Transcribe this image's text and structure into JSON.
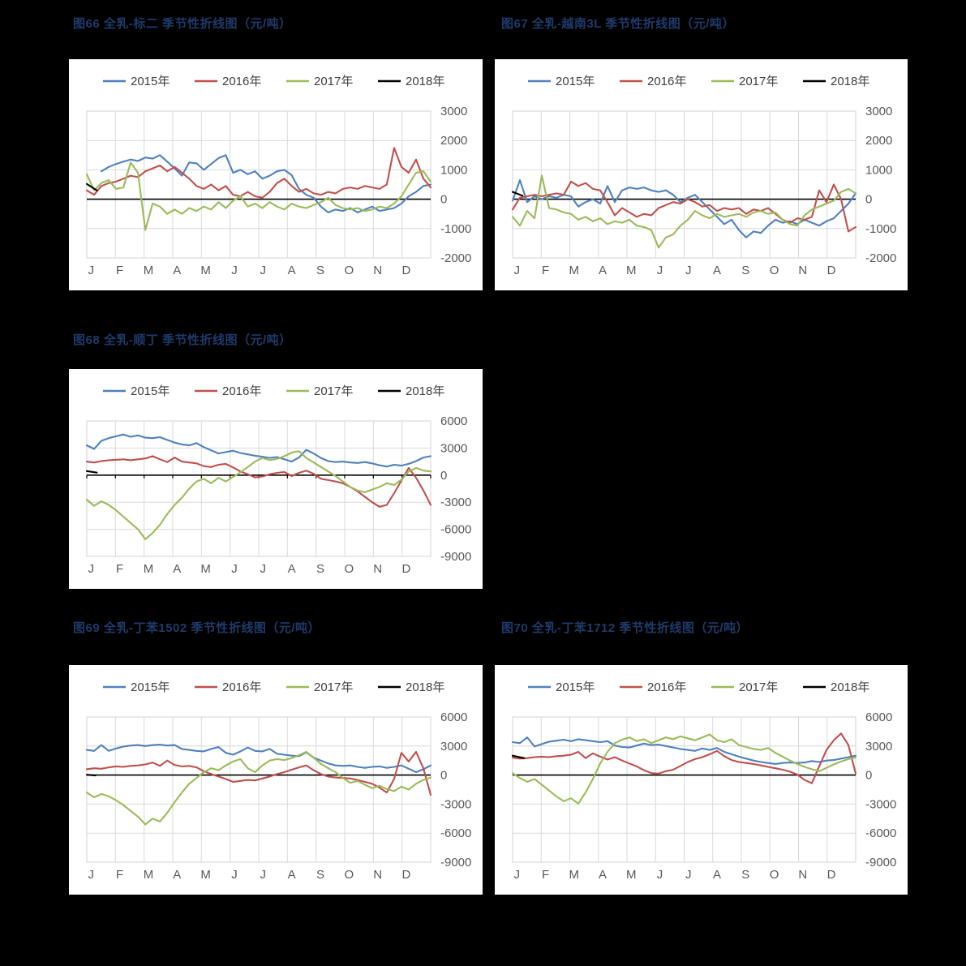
{
  "page": {
    "background": "#000000"
  },
  "palette": {
    "blue": "#4F81BD",
    "red": "#C0504D",
    "green": "#9BBB59",
    "black": "#000000",
    "title_text": "#1F3A6B",
    "axis_text": "#595959",
    "legend_text": "#404040",
    "grid": "#D9D9D9",
    "panel_bg": "#FFFFFF"
  },
  "chart_data": [
    {
      "id": "fig66",
      "type": "line",
      "title": "图66 全乳-标二 季节性折线图（元/吨）",
      "x_labels": [
        "J",
        "F",
        "M",
        "A",
        "M",
        "J",
        "J",
        "A",
        "S",
        "O",
        "N",
        "D"
      ],
      "ylim": [
        -2000,
        3000
      ],
      "yticks": [
        3000,
        2000,
        1000,
        0,
        -1000,
        -2000
      ],
      "zero_axis": true,
      "zero_axis_ticks": false,
      "grid": true,
      "legend_position": "top",
      "series": [
        {
          "name": "2015年",
          "color_key": "blue",
          "span": [
            0,
            12
          ],
          "values": [
            null,
            null,
            950,
            1100,
            1200,
            1280,
            1350,
            1300,
            1420,
            1380,
            1500,
            1280,
            1050,
            800,
            1250,
            1220,
            1000,
            1200,
            1400,
            1500,
            900,
            1000,
            850,
            950,
            700,
            800,
            950,
            1000,
            820,
            350,
            150,
            50,
            -250,
            -450,
            -350,
            -400,
            -300,
            -450,
            -350,
            -250,
            -400,
            -350,
            -300,
            -150,
            100,
            250,
            450,
            500
          ]
        },
        {
          "name": "2016年",
          "color_key": "red",
          "span": [
            0,
            12
          ],
          "values": [
            300,
            150,
            450,
            550,
            600,
            700,
            800,
            750,
            950,
            1050,
            1150,
            950,
            1100,
            900,
            700,
            450,
            350,
            500,
            300,
            450,
            150,
            100,
            250,
            100,
            50,
            250,
            550,
            700,
            450,
            250,
            350,
            200,
            150,
            250,
            200,
            350,
            400,
            350,
            450,
            400,
            350,
            500,
            1750,
            1100,
            900,
            1350,
            700,
            400
          ]
        },
        {
          "name": "2017年",
          "color_key": "green",
          "span": [
            0,
            12
          ],
          "values": [
            850,
            300,
            550,
            650,
            350,
            400,
            1250,
            900,
            -1050,
            -150,
            -250,
            -500,
            -350,
            -500,
            -300,
            -400,
            -250,
            -350,
            -100,
            -300,
            -50,
            100,
            -250,
            -150,
            -300,
            -100,
            -250,
            -350,
            -150,
            -250,
            -300,
            -200,
            -100,
            50,
            -200,
            -300,
            -350,
            -300,
            -400,
            -350,
            -250,
            -300,
            -150,
            100,
            500,
            900,
            950,
            600
          ]
        },
        {
          "name": "2018年",
          "color_key": "black",
          "span": [
            0,
            0.35
          ],
          "values": [
            520,
            300
          ]
        }
      ]
    },
    {
      "id": "fig67",
      "type": "line",
      "title": "图67 全乳-越南3L 季节性折线图（元/吨）",
      "x_labels": [
        "J",
        "F",
        "M",
        "A",
        "M",
        "J",
        "J",
        "A",
        "S",
        "O",
        "N",
        "D"
      ],
      "ylim": [
        -2000,
        3000
      ],
      "yticks": [
        3000,
        2000,
        1000,
        0,
        -1000,
        -2000
      ],
      "zero_axis": true,
      "zero_axis_ticks": false,
      "grid": true,
      "legend_position": "top",
      "series": [
        {
          "name": "2015年",
          "color_key": "blue",
          "span": [
            0,
            12
          ],
          "values": [
            -50,
            650,
            -100,
            100,
            0,
            100,
            50,
            150,
            100,
            -250,
            -100,
            0,
            -150,
            450,
            -100,
            300,
            400,
            350,
            400,
            300,
            250,
            300,
            150,
            -100,
            50,
            150,
            -100,
            -350,
            -600,
            -850,
            -700,
            -1050,
            -1300,
            -1100,
            -1150,
            -900,
            -700,
            -800,
            -750,
            -850,
            -700,
            -800,
            -900,
            -750,
            -650,
            -400,
            -150,
            200
          ]
        },
        {
          "name": "2016年",
          "color_key": "red",
          "span": [
            0,
            12
          ],
          "values": [
            -350,
            50,
            100,
            150,
            100,
            150,
            200,
            150,
            600,
            450,
            550,
            350,
            300,
            -100,
            -550,
            -300,
            -450,
            -600,
            -500,
            -550,
            -300,
            -200,
            -100,
            -150,
            0,
            -100,
            -250,
            -200,
            -400,
            -300,
            -350,
            -300,
            -500,
            -350,
            -400,
            -300,
            -500,
            -700,
            -800,
            -650,
            -700,
            -600,
            300,
            -100,
            500,
            0,
            -1100,
            -950
          ]
        },
        {
          "name": "2017年",
          "color_key": "green",
          "span": [
            0,
            12
          ],
          "values": [
            -600,
            -900,
            -400,
            -650,
            800,
            -300,
            -350,
            -450,
            -500,
            -700,
            -600,
            -750,
            -650,
            -850,
            -750,
            -800,
            -700,
            -900,
            -950,
            -1050,
            -1650,
            -1300,
            -1200,
            -900,
            -700,
            -400,
            -550,
            -650,
            -500,
            -600,
            -550,
            -500,
            -600,
            -450,
            -400,
            -500,
            -450,
            -700,
            -850,
            -900,
            -550,
            -350,
            -250,
            -150,
            -50,
            250,
            350,
            200
          ]
        },
        {
          "name": "2018年",
          "color_key": "black",
          "span": [
            0,
            0.35
          ],
          "values": [
            250,
            120
          ]
        }
      ]
    },
    {
      "id": "fig68",
      "type": "line",
      "title": "图68 全乳-顺丁 季节性折线图（元/吨）",
      "x_labels": [
        "J",
        "F",
        "M",
        "A",
        "M",
        "J",
        "J",
        "A",
        "S",
        "O",
        "N",
        "D"
      ],
      "ylim": [
        -9000,
        6000
      ],
      "yticks": [
        6000,
        3000,
        0,
        -3000,
        -6000,
        -9000
      ],
      "zero_axis": true,
      "zero_axis_ticks": true,
      "grid": true,
      "legend_position": "top",
      "series": [
        {
          "name": "2015年",
          "color_key": "blue",
          "span": [
            0,
            12
          ],
          "values": [
            3300,
            2900,
            3800,
            4100,
            4300,
            4500,
            4250,
            4400,
            4150,
            4100,
            4200,
            3900,
            3600,
            3400,
            3300,
            3550,
            3100,
            2750,
            2400,
            2550,
            2700,
            2450,
            2300,
            2150,
            2050,
            1900,
            2000,
            1750,
            1500,
            1950,
            2800,
            2400,
            1900,
            1550,
            1450,
            1500,
            1400,
            1350,
            1450,
            1300,
            1100,
            950,
            1150,
            1050,
            1250,
            1550,
            1950,
            2100
          ]
        },
        {
          "name": "2016年",
          "color_key": "red",
          "span": [
            0,
            12
          ],
          "values": [
            1500,
            1400,
            1550,
            1650,
            1700,
            1750,
            1650,
            1750,
            1850,
            2100,
            1750,
            1450,
            1950,
            1500,
            1400,
            1300,
            1000,
            900,
            1150,
            1250,
            850,
            400,
            100,
            -250,
            -150,
            100,
            250,
            350,
            -100,
            250,
            500,
            150,
            -400,
            -550,
            -700,
            -900,
            -1300,
            -1800,
            -2400,
            -3000,
            -3500,
            -3300,
            -2000,
            -600,
            800,
            -300,
            -1700,
            -3300
          ]
        },
        {
          "name": "2017年",
          "color_key": "green",
          "span": [
            0,
            12
          ],
          "values": [
            -2700,
            -3400,
            -2900,
            -3300,
            -3900,
            -4600,
            -5300,
            -6000,
            -7100,
            -6400,
            -5500,
            -4300,
            -3300,
            -2500,
            -1500,
            -700,
            -400,
            -900,
            -300,
            -700,
            -200,
            300,
            900,
            1500,
            1900,
            1650,
            1800,
            2100,
            2500,
            2650,
            1900,
            1400,
            900,
            400,
            -100,
            -700,
            -1300,
            -1700,
            -1900,
            -1600,
            -1300,
            -900,
            -1100,
            -500,
            400,
            800,
            500,
            400
          ]
        },
        {
          "name": "2018年",
          "color_key": "black",
          "span": [
            0,
            0.35
          ],
          "values": [
            450,
            280
          ]
        }
      ]
    },
    {
      "id": "fig69",
      "type": "line",
      "title": "图69 全乳-丁苯1502 季节性折线图（元/吨）",
      "x_labels": [
        "J",
        "F",
        "M",
        "A",
        "M",
        "J",
        "J",
        "A",
        "S",
        "O",
        "N",
        "D"
      ],
      "ylim": [
        -9000,
        6000
      ],
      "yticks": [
        6000,
        3000,
        0,
        -3000,
        -6000,
        -9000
      ],
      "zero_axis": true,
      "zero_axis_ticks": false,
      "grid": true,
      "legend_position": "top",
      "series": [
        {
          "name": "2015年",
          "color_key": "blue",
          "span": [
            0,
            12
          ],
          "values": [
            2600,
            2500,
            3100,
            2500,
            2750,
            2950,
            3050,
            3100,
            3000,
            3100,
            3150,
            3050,
            3100,
            2700,
            2600,
            2500,
            2450,
            2700,
            2900,
            2300,
            2100,
            2450,
            2850,
            2500,
            2450,
            2700,
            2200,
            2100,
            2000,
            1950,
            2350,
            1800,
            1500,
            1200,
            1000,
            950,
            1000,
            850,
            750,
            850,
            900,
            750,
            850,
            1000,
            650,
            300,
            600,
            1000
          ]
        },
        {
          "name": "2016年",
          "color_key": "red",
          "span": [
            0,
            12
          ],
          "values": [
            600,
            700,
            650,
            800,
            900,
            850,
            950,
            1000,
            1100,
            1300,
            950,
            1500,
            1050,
            900,
            950,
            800,
            400,
            100,
            -150,
            -400,
            -700,
            -600,
            -500,
            -550,
            -350,
            -150,
            100,
            300,
            550,
            800,
            1000,
            500,
            100,
            -150,
            -250,
            -300,
            -350,
            -500,
            -700,
            -900,
            -1300,
            -1800,
            -400,
            2300,
            1400,
            2400,
            700,
            -2050
          ]
        },
        {
          "name": "2017年",
          "color_key": "green",
          "span": [
            0,
            12
          ],
          "values": [
            -1800,
            -2300,
            -1950,
            -2200,
            -2600,
            -3100,
            -3700,
            -4300,
            -5100,
            -4500,
            -4800,
            -3900,
            -2800,
            -1800,
            -900,
            -300,
            300,
            700,
            500,
            1000,
            1400,
            1650,
            700,
            300,
            1000,
            1500,
            1650,
            1550,
            1750,
            2050,
            2400,
            1800,
            1150,
            700,
            300,
            -300,
            -800,
            -600,
            -1000,
            -1350,
            -1100,
            -1450,
            -1650,
            -1200,
            -1500,
            -900,
            -500,
            -250
          ]
        },
        {
          "name": "2018年",
          "color_key": "black",
          "span": [
            0,
            0.3
          ],
          "values": [
            30,
            -40
          ]
        }
      ]
    },
    {
      "id": "fig70",
      "type": "line",
      "title": "图70 全乳-丁苯1712 季节性折线图（元/吨）",
      "x_labels": [
        "J",
        "F",
        "M",
        "A",
        "M",
        "J",
        "J",
        "A",
        "S",
        "O",
        "N",
        "D"
      ],
      "ylim": [
        -9000,
        6000
      ],
      "yticks": [
        6000,
        3000,
        0,
        -3000,
        -6000,
        -9000
      ],
      "zero_axis": true,
      "zero_axis_ticks": false,
      "grid": true,
      "legend_position": "top",
      "series": [
        {
          "name": "2015年",
          "color_key": "blue",
          "span": [
            0,
            12
          ],
          "values": [
            3400,
            3300,
            3900,
            2950,
            3200,
            3450,
            3550,
            3650,
            3500,
            3700,
            3600,
            3500,
            3400,
            3500,
            3050,
            2900,
            2850,
            3050,
            3250,
            3100,
            3150,
            3000,
            2850,
            2700,
            2600,
            2500,
            2750,
            2600,
            2800,
            2400,
            2150,
            1900,
            1700,
            1500,
            1350,
            1250,
            1150,
            1250,
            1300,
            1250,
            1300,
            1450,
            1350,
            1500,
            1550,
            1700,
            1850,
            2000
          ]
        },
        {
          "name": "2016年",
          "color_key": "red",
          "span": [
            0,
            12
          ],
          "values": [
            1800,
            1700,
            1750,
            1850,
            1900,
            1850,
            1950,
            2000,
            2100,
            2400,
            1750,
            2250,
            1900,
            1600,
            1850,
            1500,
            1200,
            900,
            500,
            200,
            150,
            400,
            550,
            950,
            1350,
            1650,
            1850,
            2150,
            2500,
            1950,
            1550,
            1350,
            1250,
            1150,
            1000,
            850,
            700,
            550,
            350,
            50,
            -500,
            -850,
            900,
            2600,
            3600,
            4300,
            3100,
            150
          ]
        },
        {
          "name": "2017年",
          "color_key": "green",
          "span": [
            0,
            12
          ],
          "values": [
            200,
            -300,
            -700,
            -400,
            -1000,
            -1600,
            -2200,
            -2700,
            -2400,
            -2950,
            -1800,
            -400,
            1200,
            2400,
            3300,
            3650,
            3900,
            3500,
            3700,
            3300,
            3600,
            3900,
            3700,
            4000,
            3800,
            3600,
            3900,
            4200,
            3600,
            3400,
            3700,
            3100,
            2900,
            2700,
            2600,
            2800,
            2300,
            1900,
            1500,
            1150,
            850,
            600,
            400,
            750,
            1100,
            1400,
            1650,
            1800
          ]
        },
        {
          "name": "2018年",
          "color_key": "black",
          "span": [
            0,
            0.4
          ],
          "values": [
            2000,
            1750
          ]
        }
      ]
    }
  ]
}
